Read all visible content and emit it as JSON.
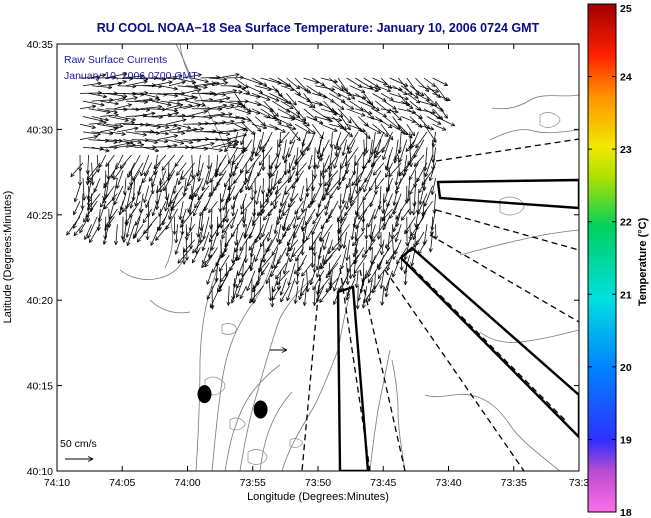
{
  "chart_data": {
    "type": "quiver-map",
    "title": "RU COOL  NOAA−18  Sea Surface Temperature:  January 10, 2006 0724 GMT",
    "annotation_line1": "Raw Surface Currents",
    "annotation_line2": "January 10, 2006 0700 GMT",
    "xlabel": "Longitude (Degrees:Minutes)",
    "ylabel": "Latitude (Degrees:Minutes)",
    "x_ticks": [
      "74:10",
      "74:05",
      "74:00",
      "73:55",
      "73:50",
      "73:45",
      "73:40",
      "73:35",
      "73:3"
    ],
    "y_ticks": [
      "40:35",
      "40:30",
      "40:25",
      "40:20",
      "40:15",
      "40:10"
    ],
    "xlim": [
      -74.1667,
      -73.5
    ],
    "ylim": [
      40.1667,
      40.5833
    ],
    "scale_label": "50 cm/s",
    "colorbar": {
      "label": "Temperature (°C)",
      "ticks": [
        "25",
        "24",
        "23",
        "22",
        "21",
        "20",
        "19",
        "18"
      ],
      "range": [
        18,
        25
      ]
    },
    "vector_field": {
      "rows": 20,
      "cols": 26,
      "lon_start": -74.1,
      "lon_step": 0.0145,
      "lat_start": 40.295,
      "lat_step": 0.0112
    },
    "markers": [
      {
        "lon": -73.9783,
        "lat": 40.2417
      },
      {
        "lon": -73.9067,
        "lat": 40.2267
      }
    ]
  }
}
